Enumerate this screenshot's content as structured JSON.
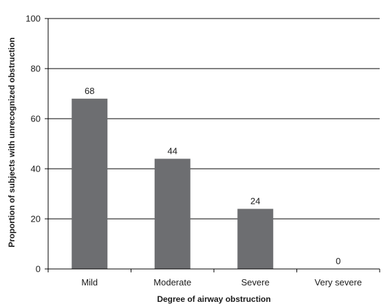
{
  "chart_data": {
    "type": "bar",
    "categories": [
      "Mild",
      "Moderate",
      "Severe",
      "Very severe"
    ],
    "values": [
      68,
      44,
      24,
      0
    ],
    "data_labels": [
      "68",
      "44",
      "24",
      "0"
    ],
    "xlabel": "Degree of airway obstruction",
    "ylabel": "Proportion of subjects with unrecognized obstruction",
    "ylim": [
      0,
      100
    ],
    "yticks": [
      0,
      20,
      40,
      60,
      80,
      100
    ],
    "grid": true,
    "legend": "none",
    "bar_color": "#6d6e71",
    "grid_color": "#000000"
  }
}
